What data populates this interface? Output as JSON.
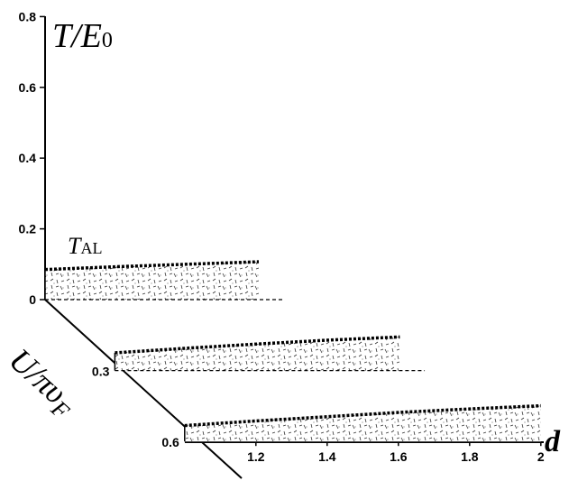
{
  "chart_data": {
    "type": "area",
    "title": "",
    "axes": {
      "vertical": {
        "label_main": "T/E",
        "label_sub": "0",
        "range": [
          0,
          0.8
        ],
        "ticks": [
          {
            "value": 0,
            "label": "0"
          },
          {
            "value": 0.2,
            "label": "0.2"
          },
          {
            "value": 0.4,
            "label": "0.4"
          },
          {
            "value": 0.6,
            "label": "0.6"
          },
          {
            "value": 0.8,
            "label": "0.8"
          }
        ]
      },
      "depth": {
        "label_main": "U/πυ",
        "label_sub": "F",
        "ticks": [
          {
            "value": 0,
            "label": "0"
          },
          {
            "value": 0.3,
            "label": "0.3"
          },
          {
            "value": 0.6,
            "label": "0.6"
          }
        ]
      },
      "horizontal": {
        "label": "d",
        "range": [
          1,
          2
        ],
        "ticks": [
          {
            "value": 1.2,
            "label": "1.2"
          },
          {
            "value": 1.4,
            "label": "1.4"
          },
          {
            "value": 1.6,
            "label": "1.6"
          },
          {
            "value": 1.8,
            "label": "1.8"
          },
          {
            "value": 2,
            "label": "2"
          }
        ]
      }
    },
    "series": [
      {
        "depth_value": 0,
        "d": [
          1.0,
          1.2,
          1.4,
          1.6
        ],
        "T": [
          0.085,
          0.093,
          0.1,
          0.107
        ]
      },
      {
        "depth_value": 0.3,
        "d": [
          1.0,
          1.2,
          1.4,
          1.6,
          1.8
        ],
        "T": [
          0.05,
          0.063,
          0.075,
          0.086,
          0.095
        ]
      },
      {
        "depth_value": 0.6,
        "d": [
          1.0,
          1.2,
          1.4,
          1.6,
          1.8,
          2.0
        ],
        "T": [
          0.045,
          0.058,
          0.07,
          0.082,
          0.092,
          0.101
        ]
      }
    ],
    "annotations": {
      "curve_label_main": "T",
      "curve_label_sub": "AL",
      "region_label": "AL"
    }
  }
}
